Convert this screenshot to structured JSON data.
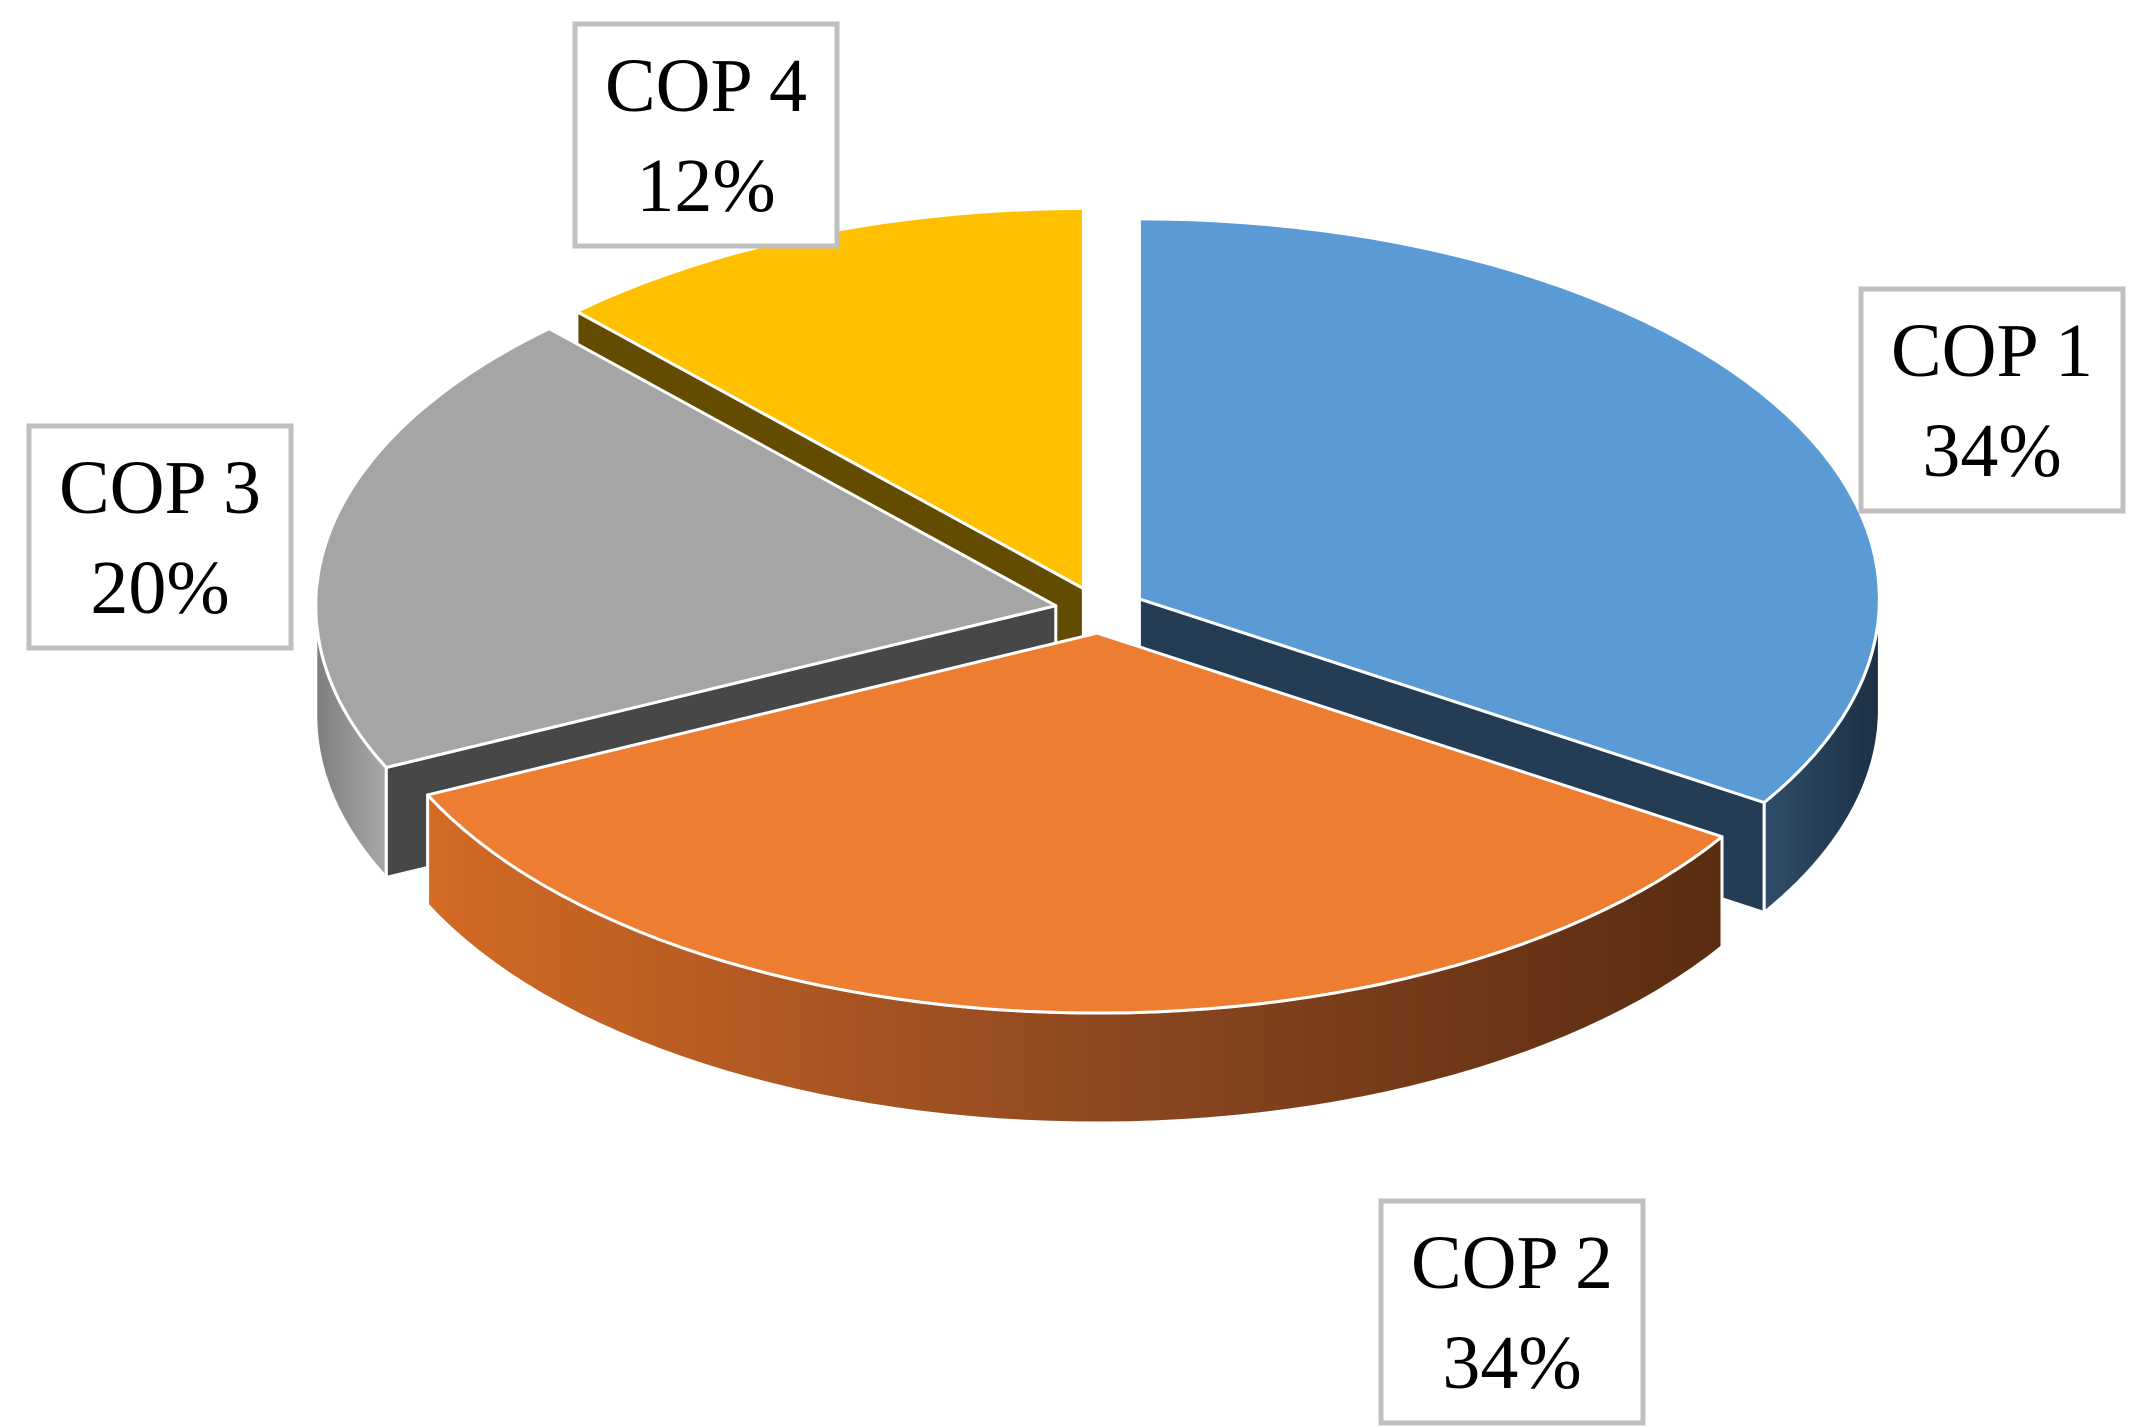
{
  "chart_data": {
    "type": "pie",
    "variant": "3d-exploded",
    "slices": [
      {
        "label": "COP 1",
        "value": 34,
        "value_label": "34%",
        "color": "#5b9bd5",
        "side_color": "#253d54"
      },
      {
        "label": "COP 2",
        "value": 34,
        "value_label": "34%",
        "color": "#ed7d31",
        "side_color": "#6b3410"
      },
      {
        "label": "COP 3",
        "value": 20,
        "value_label": "20%",
        "color": "#a5a5a5",
        "side_color": "#474747"
      },
      {
        "label": "COP 4",
        "value": 12,
        "value_label": "12%",
        "color": "#ffc000",
        "side_color": "#634b00"
      }
    ],
    "legend": "none"
  }
}
